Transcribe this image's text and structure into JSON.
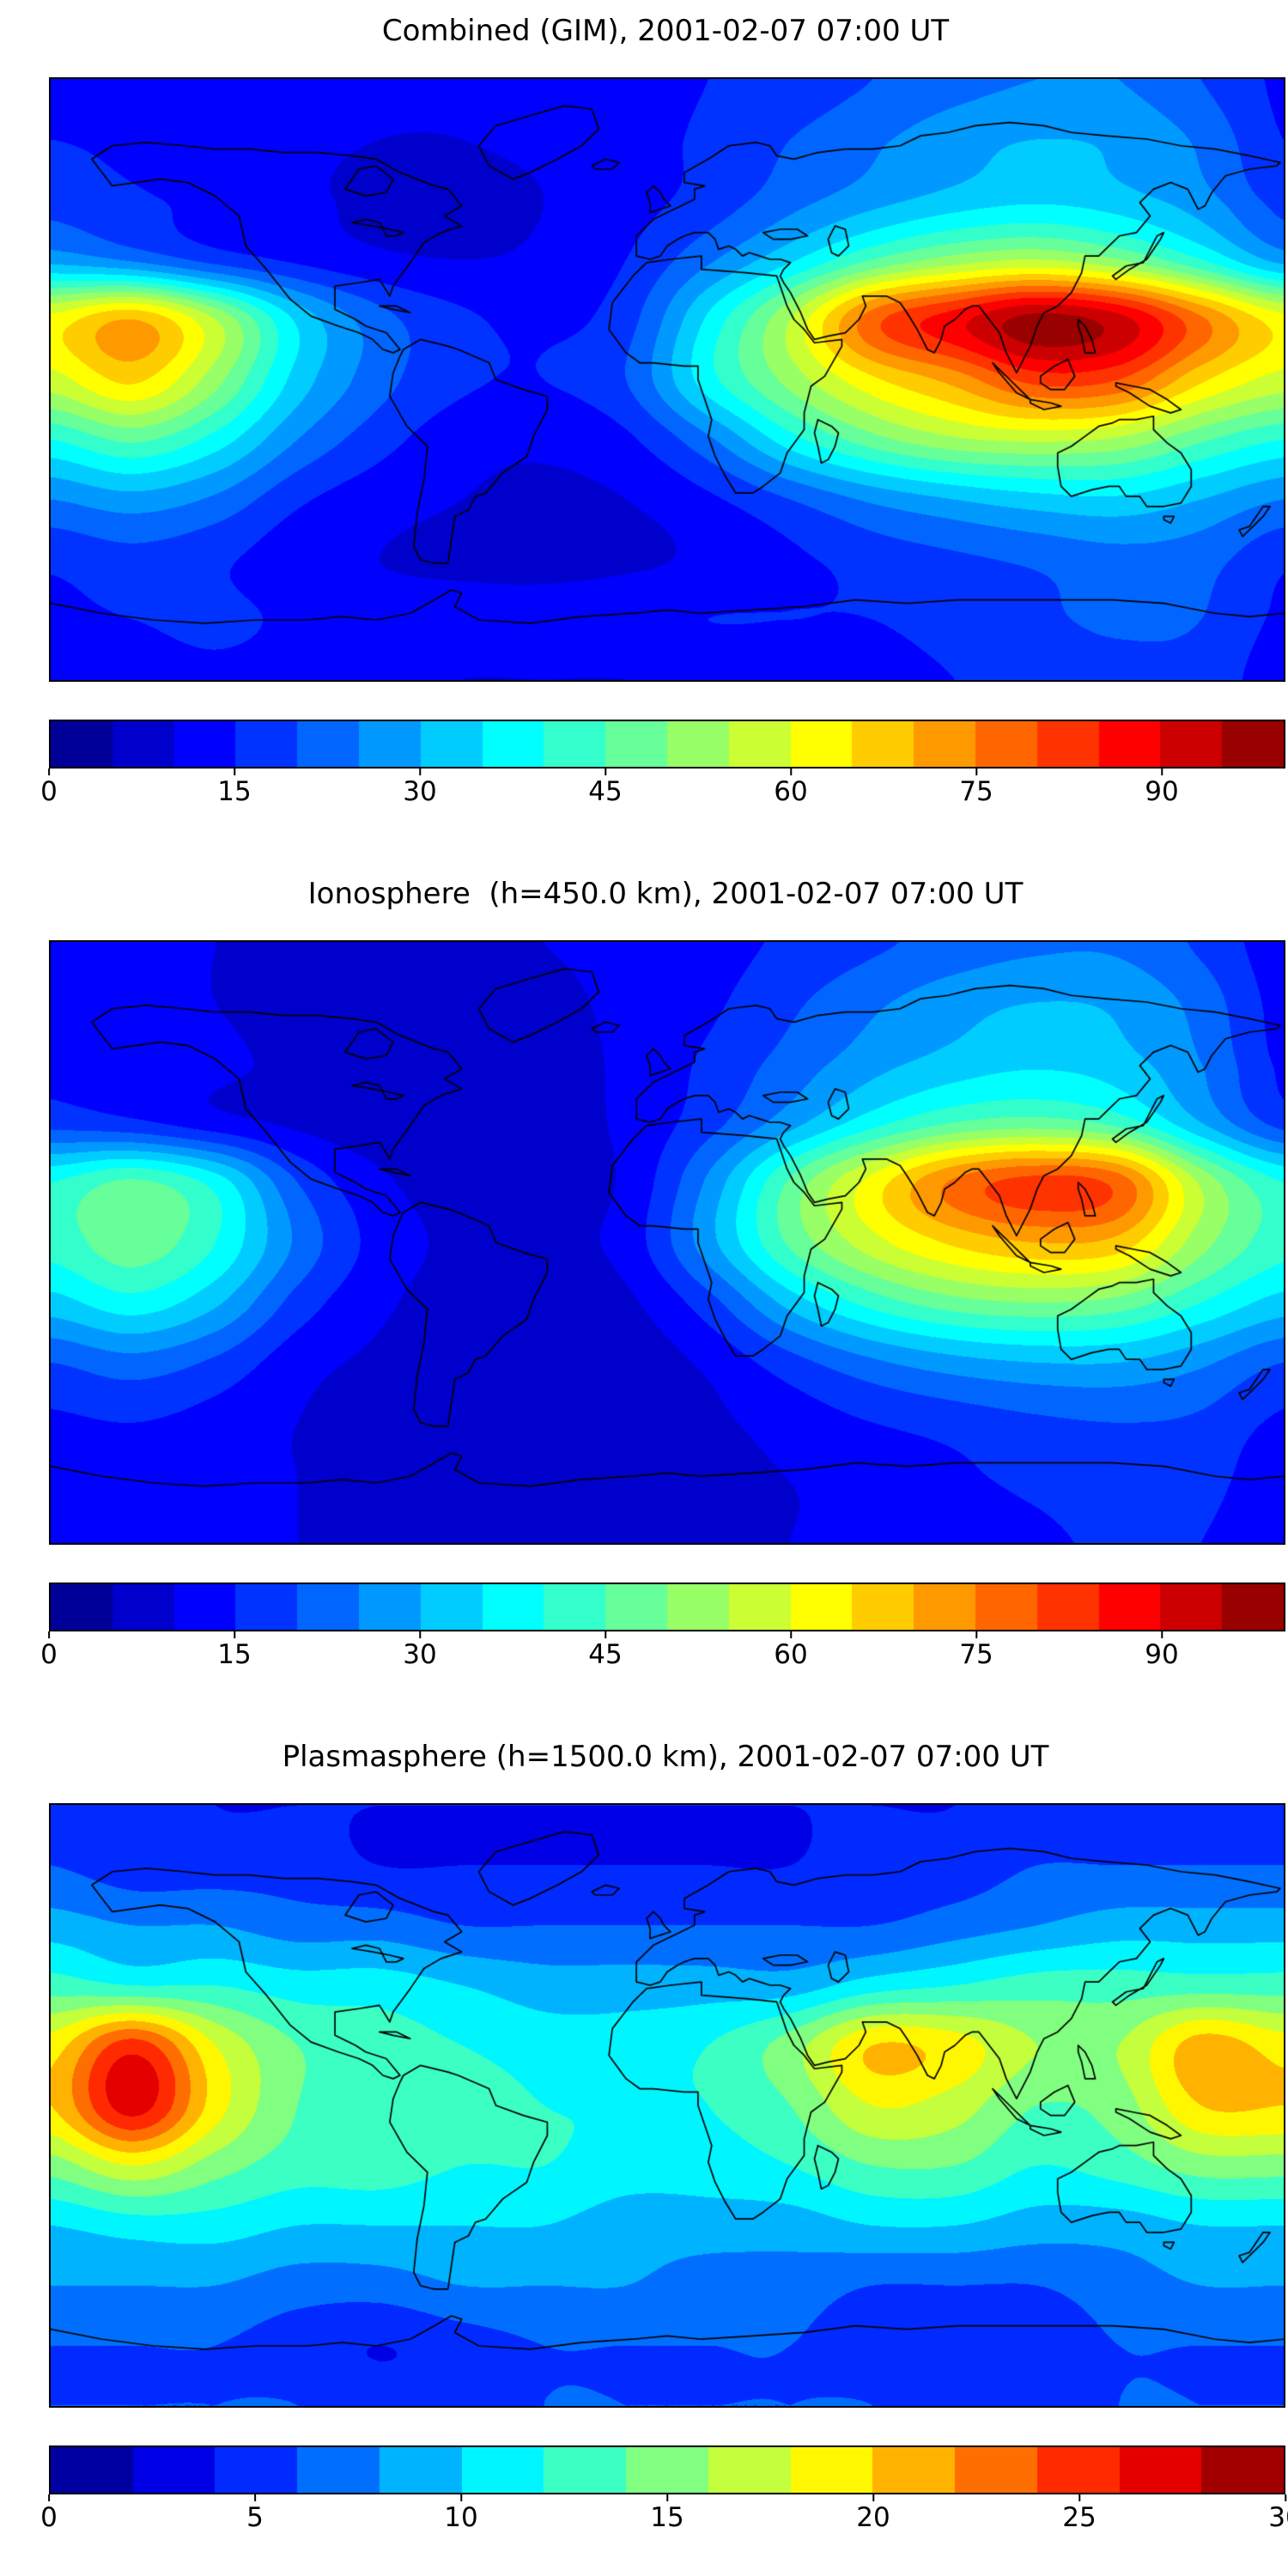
{
  "figure": {
    "background": "#ffffff",
    "text_color": "#000000",
    "coastline_color": "#000000"
  },
  "chart_data": [
    {
      "type": "heatmap",
      "name": "combined-gim",
      "title": "Combined (GIM), 2001-02-07 07:00 UT",
      "projection": "equirectangular",
      "colormap": "jet",
      "legend_position": "bottom-colorbar",
      "lon": [
        -180,
        -156,
        -132,
        -108,
        -84,
        -60,
        -36,
        -12,
        12,
        36,
        60,
        84,
        108,
        132,
        156,
        180
      ],
      "lat": [
        90,
        72,
        54,
        36,
        18,
        0,
        -18,
        -36,
        -54,
        -72,
        -90
      ],
      "levels": {
        "min": 0,
        "max": 100,
        "segments": 20
      },
      "colorbar_ticks": [
        0,
        15,
        30,
        45,
        60,
        75,
        90
      ],
      "values": [
        [
          14,
          13,
          12,
          12,
          11,
          11,
          12,
          13,
          15,
          17,
          20,
          23,
          25,
          25,
          20,
          14
        ],
        [
          15,
          14,
          12,
          11,
          10,
          10,
          11,
          13,
          16,
          20,
          24,
          28,
          30,
          29,
          24,
          15
        ],
        [
          18,
          16,
          13,
          11,
          9,
          9,
          10,
          13,
          17,
          23,
          28,
          32,
          34,
          32,
          27,
          18
        ],
        [
          28,
          24,
          18,
          14,
          11,
          10,
          11,
          15,
          24,
          34,
          45,
          52,
          55,
          50,
          40,
          28
        ],
        [
          62,
          70,
          55,
          34,
          22,
          16,
          14,
          18,
          36,
          55,
          78,
          88,
          97,
          92,
          76,
          62
        ],
        [
          58,
          66,
          52,
          33,
          22,
          16,
          15,
          20,
          38,
          52,
          64,
          72,
          82,
          80,
          66,
          58
        ],
        [
          40,
          46,
          38,
          25,
          17,
          12,
          11,
          14,
          24,
          38,
          48,
          54,
          56,
          54,
          46,
          40
        ],
        [
          25,
          28,
          24,
          16,
          12,
          10,
          9,
          10,
          14,
          20,
          26,
          30,
          33,
          34,
          30,
          25
        ],
        [
          16,
          18,
          16,
          12,
          10,
          9,
          8,
          9,
          11,
          14,
          17,
          19,
          21,
          23,
          22,
          16
        ],
        [
          14,
          15,
          16,
          14,
          12,
          12,
          13,
          14,
          15,
          15,
          15,
          17,
          19,
          21,
          20,
          14
        ],
        [
          12,
          13,
          14,
          13,
          11,
          10,
          10,
          10,
          11,
          12,
          13,
          15,
          17,
          18,
          18,
          12
        ]
      ]
    },
    {
      "type": "heatmap",
      "name": "ionosphere",
      "title": "Ionosphere  (h=450.0 km), 2001-02-07 07:00 UT",
      "projection": "equirectangular",
      "colormap": "jet",
      "legend_position": "bottom-colorbar",
      "lon": [
        -180,
        -156,
        -132,
        -108,
        -84,
        -60,
        -36,
        -12,
        12,
        36,
        60,
        84,
        108,
        132,
        156,
        180
      ],
      "lat": [
        90,
        72,
        54,
        36,
        18,
        0,
        -18,
        -36,
        -54,
        -72,
        -90
      ],
      "levels": {
        "min": 0,
        "max": 100,
        "segments": 20
      },
      "colorbar_ticks": [
        0,
        15,
        30,
        45,
        60,
        75,
        90
      ],
      "values": [
        [
          12,
          11,
          10,
          9,
          9,
          9,
          10,
          11,
          13,
          16,
          19,
          22,
          24,
          24,
          19,
          12
        ],
        [
          13,
          12,
          10,
          9,
          8,
          8,
          9,
          11,
          14,
          19,
          24,
          28,
          30,
          29,
          23,
          13
        ],
        [
          14,
          13,
          11,
          9,
          8,
          7,
          8,
          11,
          16,
          22,
          28,
          32,
          34,
          32,
          25,
          14
        ],
        [
          18,
          16,
          12,
          9,
          7,
          7,
          8,
          11,
          18,
          28,
          38,
          45,
          47,
          43,
          30,
          18
        ],
        [
          40,
          46,
          38,
          20,
          11,
          8,
          8,
          11,
          26,
          46,
          62,
          76,
          82,
          78,
          54,
          40
        ],
        [
          42,
          48,
          40,
          24,
          13,
          9,
          9,
          12,
          28,
          46,
          58,
          66,
          70,
          68,
          52,
          42
        ],
        [
          33,
          38,
          31,
          18,
          11,
          8,
          7,
          9,
          18,
          32,
          42,
          48,
          50,
          48,
          40,
          33
        ],
        [
          20,
          23,
          19,
          12,
          9,
          7,
          6,
          7,
          11,
          18,
          24,
          28,
          30,
          30,
          26,
          20
        ],
        [
          14,
          15,
          13,
          10,
          8,
          7,
          6,
          7,
          9,
          12,
          15,
          17,
          19,
          20,
          19,
          14
        ],
        [
          11,
          12,
          12,
          10,
          9,
          8,
          8,
          8,
          9,
          10,
          12,
          14,
          16,
          18,
          17,
          11
        ],
        [
          10,
          11,
          11,
          10,
          9,
          8,
          8,
          8,
          9,
          10,
          11,
          13,
          14,
          16,
          15,
          10
        ]
      ]
    },
    {
      "type": "heatmap",
      "name": "plasmasphere",
      "title": "Plasmasphere (h=1500.0 km), 2001-02-07 07:00 UT",
      "projection": "equirectangular",
      "colormap": "jet",
      "legend_position": "bottom-colorbar",
      "lon": [
        -180,
        -156,
        -132,
        -108,
        -84,
        -60,
        -36,
        -12,
        12,
        36,
        60,
        84,
        108,
        132,
        156,
        180
      ],
      "lat": [
        90,
        72,
        54,
        36,
        18,
        0,
        -18,
        -36,
        -54,
        -72,
        -90
      ],
      "levels": {
        "min": 0,
        "max": 30,
        "segments": 15
      },
      "colorbar_ticks": [
        0,
        5,
        10,
        15,
        20,
        25,
        30
      ],
      "values": [
        [
          5,
          5,
          4,
          4,
          4,
          4,
          4,
          4,
          4,
          4,
          4,
          4,
          5,
          5,
          5,
          5
        ],
        [
          6,
          5,
          5,
          5,
          4,
          4,
          4,
          4,
          4,
          4,
          5,
          5,
          6,
          6,
          6,
          6
        ],
        [
          9,
          8,
          8,
          7,
          7,
          6,
          6,
          6,
          6,
          6,
          6,
          7,
          8,
          9,
          9,
          9
        ],
        [
          13,
          12,
          12,
          11,
          11,
          10,
          9,
          9,
          9,
          9,
          11,
          12,
          13,
          13,
          13,
          13
        ],
        [
          19,
          25,
          18,
          14,
          13,
          12,
          11,
          11,
          12,
          15,
          20,
          19,
          16,
          16,
          21,
          19
        ],
        [
          20,
          27,
          19,
          14,
          13,
          13,
          12,
          12,
          12,
          14,
          18,
          17,
          14,
          15,
          20,
          20
        ],
        [
          15,
          18,
          15,
          13,
          13,
          12,
          12,
          11,
          11,
          12,
          14,
          14,
          12,
          13,
          15,
          15
        ],
        [
          10,
          11,
          11,
          10,
          10,
          10,
          10,
          9,
          9,
          9,
          10,
          10,
          9,
          9,
          10,
          10
        ],
        [
          8,
          8,
          8,
          7,
          7,
          8,
          8,
          8,
          7,
          7,
          6,
          6,
          6,
          7,
          8,
          8
        ],
        [
          6,
          6,
          6,
          5,
          4,
          5,
          6,
          6,
          6,
          6,
          5,
          5,
          5,
          6,
          6,
          6
        ],
        [
          6,
          6,
          6,
          6,
          5,
          5,
          6,
          6,
          6,
          6,
          6,
          5,
          5,
          6,
          6,
          6
        ]
      ]
    }
  ]
}
